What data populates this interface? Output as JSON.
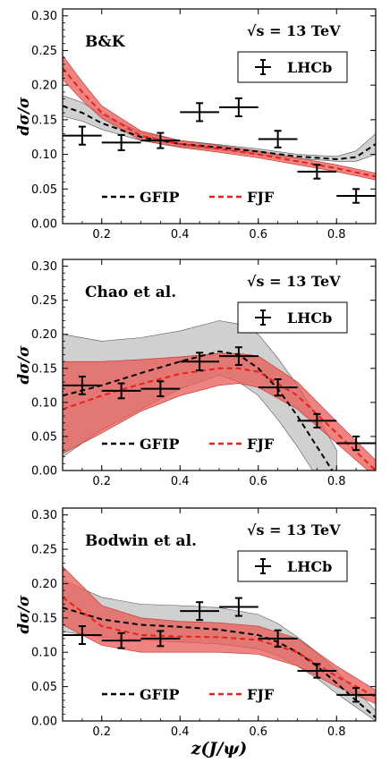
{
  "colors": {
    "gfip": "#000000",
    "fjf": "#e8201a",
    "gfip_band": "#c8c8c8",
    "fjf_band": "#e85a55",
    "frame": "#000000"
  },
  "xlabel": "z(J/ψ)",
  "shared_x_ticks": [
    "0.2",
    "0.4",
    "0.6",
    "0.8"
  ],
  "chart_data": [
    {
      "type": "line",
      "title": "B&K",
      "energy": "√s = 13 TeV",
      "ylabel": "dσ/σ",
      "xlim": [
        0.1,
        0.9
      ],
      "ylim": [
        0.0,
        0.31
      ],
      "yticks": [
        "0.00",
        "0.05",
        "0.10",
        "0.15",
        "0.20",
        "0.25",
        "0.30"
      ],
      "legend_top": "LHCb",
      "legend_bottom": [
        "GFIP",
        "FJF"
      ],
      "lhcb": {
        "x": [
          0.15,
          0.25,
          0.35,
          0.45,
          0.55,
          0.65,
          0.75,
          0.85
        ],
        "y": [
          0.127,
          0.117,
          0.12,
          0.161,
          0.168,
          0.122,
          0.075,
          0.04
        ],
        "yerr": [
          0.013,
          0.011,
          0.011,
          0.013,
          0.013,
          0.012,
          0.01,
          0.01
        ],
        "xerr": 0.05
      },
      "series": [
        {
          "name": "GFIP",
          "x": [
            0.1,
            0.15,
            0.2,
            0.3,
            0.4,
            0.5,
            0.6,
            0.7,
            0.8,
            0.85,
            0.9
          ],
          "y": [
            0.17,
            0.16,
            0.145,
            0.125,
            0.115,
            0.11,
            0.104,
            0.097,
            0.093,
            0.096,
            0.115
          ],
          "lo": [
            0.155,
            0.148,
            0.136,
            0.12,
            0.111,
            0.107,
            0.1,
            0.094,
            0.09,
            0.09,
            0.1
          ],
          "hi": [
            0.185,
            0.175,
            0.158,
            0.132,
            0.12,
            0.114,
            0.108,
            0.1,
            0.097,
            0.105,
            0.13
          ]
        },
        {
          "name": "FJF",
          "x": [
            0.1,
            0.15,
            0.2,
            0.3,
            0.4,
            0.5,
            0.6,
            0.7,
            0.8,
            0.9
          ],
          "y": [
            0.225,
            0.19,
            0.16,
            0.127,
            0.115,
            0.108,
            0.1,
            0.09,
            0.08,
            0.068
          ],
          "lo": [
            0.208,
            0.178,
            0.152,
            0.12,
            0.11,
            0.103,
            0.095,
            0.085,
            0.075,
            0.063
          ],
          "hi": [
            0.243,
            0.205,
            0.17,
            0.134,
            0.12,
            0.113,
            0.105,
            0.095,
            0.085,
            0.073
          ]
        }
      ]
    },
    {
      "type": "line",
      "title": "Chao et al.",
      "energy": "√s = 13 TeV",
      "ylabel": "dσ/σ",
      "xlim": [
        0.1,
        0.9
      ],
      "ylim": [
        0.0,
        0.31
      ],
      "yticks": [
        "0.00",
        "0.05",
        "0.10",
        "0.15",
        "0.20",
        "0.25",
        "0.30"
      ],
      "legend_top": "LHCb",
      "legend_bottom": [
        "GFIP",
        "FJF"
      ],
      "lhcb": {
        "x": [
          0.15,
          0.25,
          0.35,
          0.45,
          0.55,
          0.65,
          0.75,
          0.85
        ],
        "y": [
          0.125,
          0.117,
          0.12,
          0.16,
          0.168,
          0.122,
          0.073,
          0.04
        ],
        "yerr": [
          0.013,
          0.011,
          0.011,
          0.013,
          0.013,
          0.012,
          0.01,
          0.01
        ],
        "xerr": 0.05
      },
      "series": [
        {
          "name": "GFIP",
          "x": [
            0.1,
            0.2,
            0.3,
            0.4,
            0.5,
            0.55,
            0.6,
            0.65,
            0.7,
            0.75,
            0.8
          ],
          "y": [
            0.11,
            0.125,
            0.143,
            0.16,
            0.175,
            0.17,
            0.15,
            0.12,
            0.08,
            0.035,
            -0.01
          ],
          "lo": [
            0.02,
            0.06,
            0.09,
            0.12,
            0.14,
            0.13,
            0.11,
            0.075,
            0.035,
            -0.01,
            -0.05
          ],
          "hi": [
            0.2,
            0.19,
            0.195,
            0.205,
            0.22,
            0.215,
            0.2,
            0.165,
            0.125,
            0.08,
            0.03
          ]
        },
        {
          "name": "FJF",
          "x": [
            0.1,
            0.2,
            0.3,
            0.4,
            0.5,
            0.55,
            0.6,
            0.7,
            0.8,
            0.9
          ],
          "y": [
            0.09,
            0.11,
            0.127,
            0.142,
            0.15,
            0.15,
            0.145,
            0.11,
            0.055,
            0.0
          ],
          "lo": [
            0.025,
            0.055,
            0.087,
            0.11,
            0.125,
            0.128,
            0.122,
            0.09,
            0.04,
            -0.01
          ],
          "hi": [
            0.16,
            0.16,
            0.163,
            0.167,
            0.172,
            0.172,
            0.168,
            0.13,
            0.072,
            0.015
          ]
        }
      ]
    },
    {
      "type": "line",
      "title": "Bodwin et al.",
      "energy": "√s = 13 TeV",
      "ylabel": "dσ/σ",
      "xlim": [
        0.1,
        0.9
      ],
      "ylim": [
        0.0,
        0.31
      ],
      "yticks": [
        "0.00",
        "0.05",
        "0.10",
        "0.15",
        "0.20",
        "0.25",
        "0.30"
      ],
      "legend_top": "LHCb",
      "legend_bottom": [
        "GFIP",
        "FJF"
      ],
      "lhcb": {
        "x": [
          0.15,
          0.25,
          0.35,
          0.45,
          0.55,
          0.65,
          0.75,
          0.85
        ],
        "y": [
          0.125,
          0.117,
          0.12,
          0.16,
          0.166,
          0.12,
          0.073,
          0.038
        ],
        "yerr": [
          0.013,
          0.011,
          0.011,
          0.013,
          0.013,
          0.012,
          0.01,
          0.01
        ],
        "xerr": 0.05
      },
      "series": [
        {
          "name": "GFIP",
          "x": [
            0.1,
            0.2,
            0.3,
            0.4,
            0.5,
            0.6,
            0.65,
            0.7,
            0.75,
            0.8,
            0.85,
            0.9
          ],
          "y": [
            0.165,
            0.148,
            0.14,
            0.137,
            0.133,
            0.125,
            0.115,
            0.1,
            0.08,
            0.055,
            0.03,
            0.005
          ],
          "lo": [
            0.13,
            0.122,
            0.118,
            0.115,
            0.112,
            0.105,
            0.095,
            0.08,
            0.062,
            0.04,
            0.02,
            0.0
          ],
          "hi": [
            0.205,
            0.18,
            0.17,
            0.168,
            0.165,
            0.155,
            0.142,
            0.122,
            0.1,
            0.072,
            0.045,
            0.015
          ]
        },
        {
          "name": "FJF",
          "x": [
            0.1,
            0.2,
            0.3,
            0.4,
            0.5,
            0.6,
            0.7,
            0.8,
            0.9
          ],
          "y": [
            0.18,
            0.138,
            0.125,
            0.123,
            0.122,
            0.118,
            0.1,
            0.065,
            0.035
          ],
          "lo": [
            0.14,
            0.11,
            0.1,
            0.1,
            0.1,
            0.097,
            0.08,
            0.05,
            0.025
          ],
          "hi": [
            0.225,
            0.168,
            0.15,
            0.145,
            0.143,
            0.138,
            0.12,
            0.08,
            0.045
          ]
        }
      ]
    }
  ]
}
